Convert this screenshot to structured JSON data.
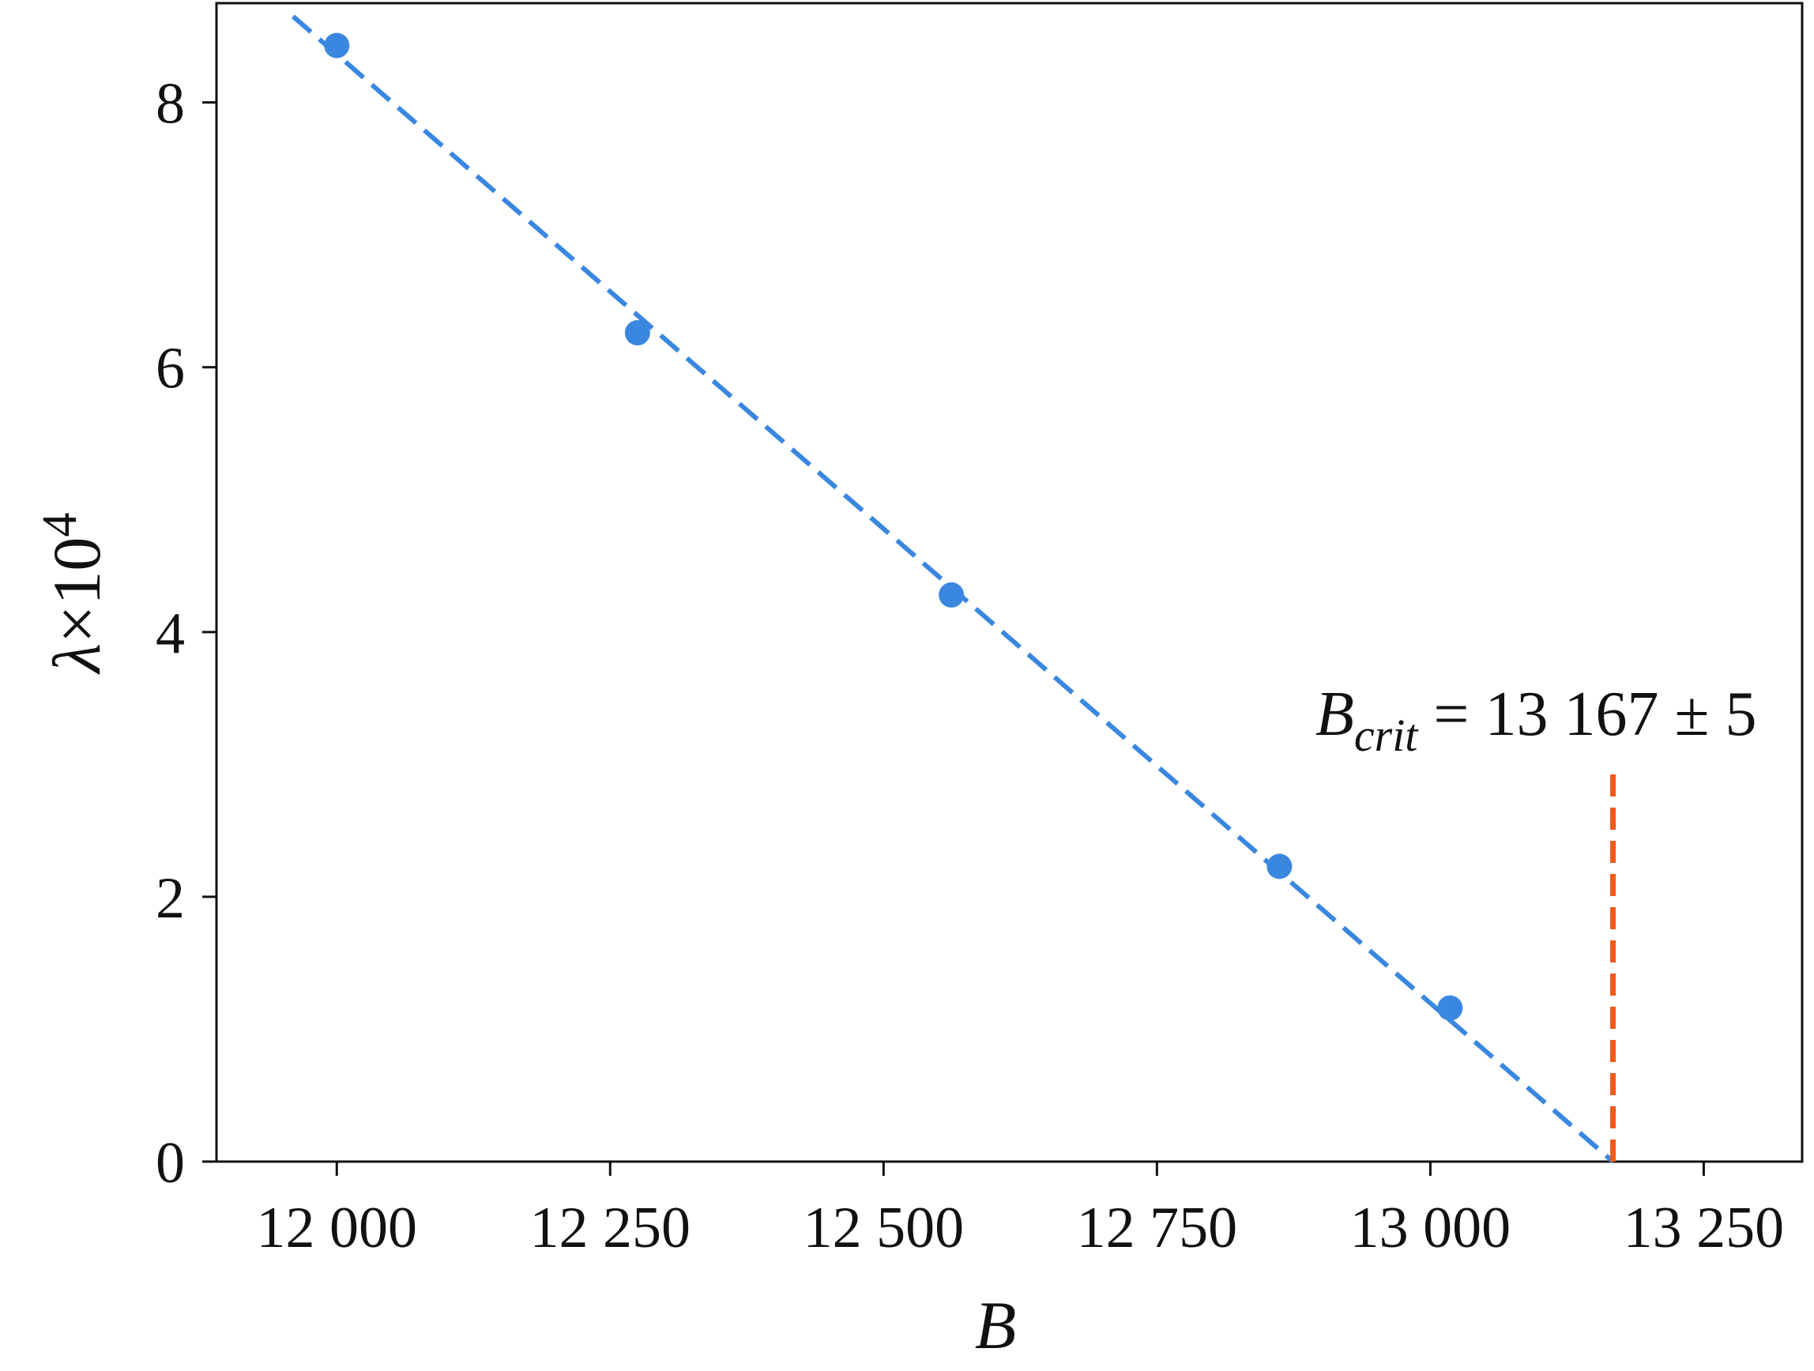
{
  "chart_data": {
    "type": "scatter",
    "xlabel": "B",
    "ylabel": {
      "base": "λ",
      "times": "×10",
      "exp": "4"
    },
    "xlim": [
      11890,
      13340
    ],
    "ylim": [
      0,
      8.75
    ],
    "xticks": [
      12000,
      12250,
      12500,
      12750,
      13000,
      13250
    ],
    "xtick_labels": [
      "12 000",
      "12 250",
      "12 500",
      "12 750",
      "13 000",
      "13 250"
    ],
    "yticks": [
      0,
      2,
      4,
      6,
      8
    ],
    "ytick_labels": [
      "0",
      "2",
      "4",
      "6",
      "8"
    ],
    "grid": false,
    "series": [
      {
        "kind": "points",
        "color": "#3a87e0",
        "x": [
          12000,
          12275,
          12562,
          12862,
          13018
        ],
        "y": [
          8.43,
          6.26,
          4.28,
          2.23,
          1.16
        ]
      },
      {
        "kind": "fit-line",
        "style": "dashed",
        "color": "#3a87e0",
        "x": [
          11960,
          13167
        ],
        "y": [
          8.65,
          0
        ]
      }
    ],
    "annotations": [
      {
        "kind": "vline",
        "style": "dashed",
        "color": "#f05a1a",
        "x": 13167,
        "y_range": [
          0,
          3.0
        ]
      },
      {
        "kind": "text",
        "symbol": "B",
        "subscript": "crit",
        "value_text": " = 13 167 ± 5"
      }
    ]
  }
}
